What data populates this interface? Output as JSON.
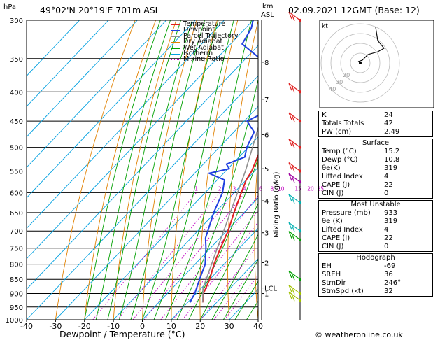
{
  "header": {
    "location": "49°02'N  20°19'E  701m  ASL",
    "datetime": "02.09.2021  12GMT  (Base: 12)",
    "hpa_label": "hPa",
    "km_label": "km",
    "asl_label": "ASL",
    "copyright": "© weatheronline.co.uk"
  },
  "legend": [
    {
      "label": "Temperature",
      "color": "#e02020",
      "style": "solid"
    },
    {
      "label": "Dewpoint",
      "color": "#2040e0",
      "style": "solid"
    },
    {
      "label": "Parcel Trajectory",
      "color": "#909090",
      "style": "solid"
    },
    {
      "label": "Dry Adiabat",
      "color": "#e08000",
      "style": "solid"
    },
    {
      "label": "Wet Adiabat",
      "color": "#00a000",
      "style": "solid"
    },
    {
      "label": "Isotherm",
      "color": "#00a0e0",
      "style": "solid"
    },
    {
      "label": "Mixing Ratio",
      "color": "#c000c0",
      "style": "dotted"
    }
  ],
  "chart_data": {
    "type": "line",
    "title": "",
    "xlabel": "Dewpoint / Temperature (°C)",
    "ylabel": "hPa",
    "xlim": [
      -40,
      40
    ],
    "ylim": [
      1000,
      300
    ],
    "x_ticks": [
      -40,
      -30,
      -20,
      -10,
      0,
      10,
      20,
      30,
      40
    ],
    "pressure_ticks": [
      300,
      350,
      400,
      450,
      500,
      550,
      600,
      650,
      700,
      750,
      800,
      850,
      900,
      950,
      1000
    ],
    "km_ticks": [
      {
        "label": "8",
        "p": 355
      },
      {
        "label": "7",
        "p": 412
      },
      {
        "label": "6",
        "p": 475
      },
      {
        "label": "5",
        "p": 545
      },
      {
        "label": "4",
        "p": 620
      },
      {
        "label": "3",
        "p": 705
      },
      {
        "label": "2",
        "p": 795
      },
      {
        "label": "LCL",
        "p": 880
      },
      {
        "label": "1",
        "p": 900
      }
    ],
    "mixing_ratio_labels": [
      "1",
      "2",
      "3",
      "4",
      "6",
      "8",
      "10",
      "15",
      "20",
      "25"
    ],
    "mixing_ratio_axis_label": "Mixing Ratio (g/kg)",
    "series": [
      {
        "name": "Temperature",
        "p": [
          933,
          900,
          850,
          800,
          750,
          700,
          650,
          600,
          570,
          550,
          500,
          450,
          400,
          350,
          340,
          300
        ],
        "t": [
          15.2,
          12.5,
          10,
          6.5,
          3.5,
          0.5,
          -3.5,
          -7.5,
          -10,
          -11,
          -15.5,
          -21,
          -27.5,
          -34.5,
          -35,
          -44
        ]
      },
      {
        "name": "Dewpoint",
        "p": [
          933,
          900,
          850,
          800,
          750,
          720,
          700,
          650,
          600,
          570,
          555,
          545,
          535,
          520,
          500,
          470,
          460,
          450,
          440,
          420,
          400,
          385,
          370,
          350,
          330,
          310,
          300
        ],
        "t": [
          10.8,
          9.5,
          6.5,
          3.5,
          -1.5,
          -5,
          -6.5,
          -10.5,
          -14,
          -17.5,
          -25,
          -19.5,
          -22,
          -18,
          -20.5,
          -23,
          -26,
          -29,
          -27,
          -28,
          -31,
          -29,
          -33,
          -45,
          -56,
          -58,
          -60
        ]
      },
      {
        "name": "Parcel Trajectory",
        "p": [
          933,
          880,
          850,
          800,
          750,
          700,
          650,
          600,
          550,
          500,
          450,
          400,
          350,
          300
        ],
        "t": [
          15.2,
          10.5,
          8.8,
          5.7,
          2.4,
          -1,
          -4.8,
          -8.8,
          -13.2,
          -18.5,
          -24.5,
          -31.5,
          -39.5,
          -49
        ]
      }
    ],
    "wind_barbs": [
      {
        "p": 300,
        "color": "#e02020"
      },
      {
        "p": 400,
        "color": "#e02020"
      },
      {
        "p": 450,
        "color": "#e02020"
      },
      {
        "p": 500,
        "color": "#e02020"
      },
      {
        "p": 550,
        "color": "#e02020"
      },
      {
        "p": 575,
        "color": "#a000a0"
      },
      {
        "p": 625,
        "color": "#00b0b0"
      },
      {
        "p": 700,
        "color": "#00b0b0"
      },
      {
        "p": 725,
        "color": "#00a000"
      },
      {
        "p": 850,
        "color": "#00a000"
      },
      {
        "p": 900,
        "color": "#a0c000"
      },
      {
        "p": 925,
        "color": "#a0c000"
      }
    ]
  },
  "hodograph": {
    "label": "kt",
    "ring_labels": [
      "40",
      "30",
      "20"
    ]
  },
  "indices": [
    {
      "label": "K",
      "value": "24"
    },
    {
      "label": "Totals Totals",
      "value": "42"
    },
    {
      "label": "PW (cm)",
      "value": "2.49"
    }
  ],
  "surface": {
    "title": "Surface",
    "rows": [
      {
        "label": "Temp (°C)",
        "value": "15.2"
      },
      {
        "label": "Dewp (°C)",
        "value": "10.8"
      },
      {
        "label": "θe(K)",
        "value": "319"
      },
      {
        "label": "Lifted Index",
        "value": "4"
      },
      {
        "label": "CAPE (J)",
        "value": "22"
      },
      {
        "label": "CIN (J)",
        "value": "0"
      }
    ]
  },
  "most_unstable": {
    "title": "Most Unstable",
    "rows": [
      {
        "label": "Pressure (mb)",
        "value": "933"
      },
      {
        "label": "θe (K)",
        "value": "319"
      },
      {
        "label": "Lifted Index",
        "value": "4"
      },
      {
        "label": "CAPE (J)",
        "value": "22"
      },
      {
        "label": "CIN (J)",
        "value": "0"
      }
    ]
  },
  "hodograph_table": {
    "title": "Hodograph",
    "rows": [
      {
        "label": "EH",
        "value": "-69"
      },
      {
        "label": "SREH",
        "value": "36"
      },
      {
        "label": "StmDir",
        "value": "246°"
      },
      {
        "label": "StmSpd (kt)",
        "value": "32"
      }
    ]
  }
}
